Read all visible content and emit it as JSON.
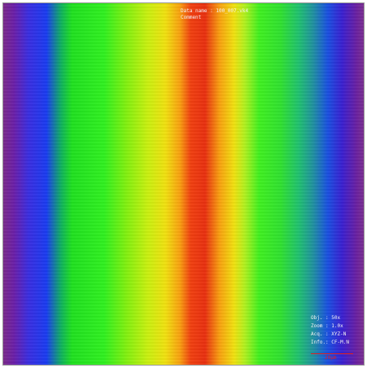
{
  "header": {
    "data_name": "Data name : 100_007.vk4",
    "comment": "Comment"
  },
  "info": [
    "Obj. : 50x",
    "Zoom : 1.0x",
    "Acq. : XYZ-N",
    "Info.: CF-M.N"
  ],
  "scale_bar": {
    "label": "20μm"
  }
}
